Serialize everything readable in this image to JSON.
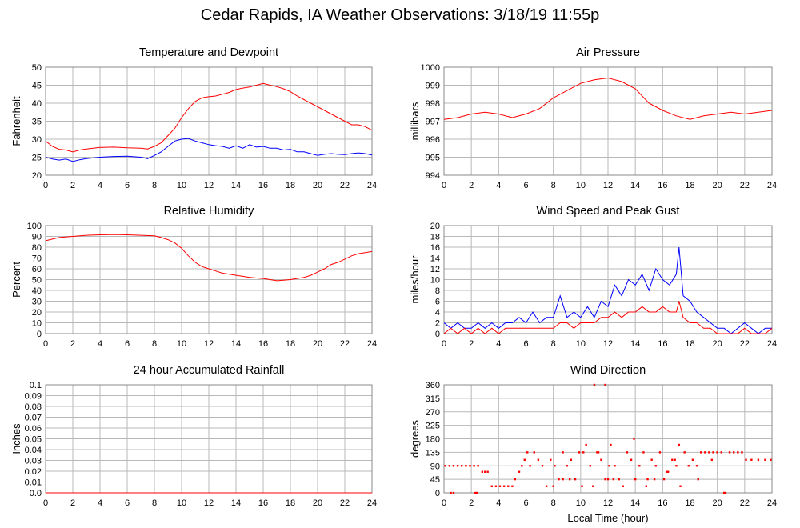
{
  "header": {
    "title": "Cedar Rapids, IA Weather Observations: 3/18/19 11:55p"
  },
  "colors": {
    "red": "#ff0000",
    "blue": "#0000ff",
    "grid": "#b8b8b8",
    "frame": "#888888"
  },
  "chart_data": [
    {
      "id": "temp",
      "type": "line",
      "title": "Temperature and Dewpoint",
      "xlabel": "",
      "ylabel": "Fahrenheit",
      "xlim": [
        0,
        24
      ],
      "ylim": [
        20,
        50
      ],
      "xticks": [
        0,
        2,
        4,
        6,
        8,
        10,
        12,
        14,
        16,
        18,
        20,
        22,
        24
      ],
      "yticks": [
        20,
        25,
        30,
        35,
        40,
        45,
        50
      ],
      "grid": true,
      "series": [
        {
          "color": "#ff0000",
          "x": [
            0,
            0.5,
            1,
            1.5,
            2,
            2.5,
            3,
            4,
            5,
            6,
            7,
            7.5,
            8,
            8.5,
            9,
            9.5,
            10,
            10.5,
            11,
            11.5,
            12,
            12.5,
            13,
            13.5,
            14,
            14.5,
            15,
            15.5,
            16,
            16.5,
            17,
            17.5,
            18,
            18.5,
            19,
            19.5,
            20,
            20.5,
            21,
            21.5,
            22,
            22.5,
            23,
            23.5,
            24
          ],
          "values": [
            29.5,
            28,
            27.2,
            27,
            26.5,
            27,
            27.3,
            27.7,
            27.8,
            27.6,
            27.5,
            27.3,
            28,
            29,
            31,
            33,
            36,
            38.5,
            40.5,
            41.5,
            41.8,
            42,
            42.5,
            43,
            43.8,
            44.2,
            44.5,
            45,
            45.5,
            45,
            44.6,
            44,
            43.2,
            42,
            41,
            40,
            39,
            38,
            37,
            36,
            35,
            34,
            34,
            33.5,
            32.5
          ]
        },
        {
          "color": "#0000ff",
          "x": [
            0,
            0.5,
            1,
            1.5,
            2,
            2.5,
            3,
            4,
            5,
            6,
            7,
            7.5,
            8,
            8.5,
            9,
            9.5,
            10,
            10.5,
            11,
            11.5,
            12,
            12.5,
            13,
            13.5,
            14,
            14.5,
            15,
            15.5,
            16,
            16.5,
            17,
            17.5,
            18,
            18.5,
            19,
            19.5,
            20,
            20.5,
            21,
            21.5,
            22,
            22.5,
            23,
            23.5,
            24
          ],
          "values": [
            25,
            24.5,
            24.2,
            24.5,
            23.8,
            24.3,
            24.6,
            25,
            25.2,
            25.3,
            25,
            24.6,
            25.5,
            26.5,
            28,
            29.5,
            30,
            30.2,
            29.5,
            29,
            28.5,
            28.2,
            28,
            27.5,
            28.2,
            27.5,
            28.5,
            27.8,
            28,
            27.5,
            27.5,
            27,
            27.2,
            26.5,
            26.5,
            26,
            25.5,
            25.8,
            26,
            25.8,
            25.7,
            26,
            26.2,
            26,
            25.6
          ]
        }
      ]
    },
    {
      "id": "pressure",
      "type": "line",
      "title": "Air Pressure",
      "xlabel": "",
      "ylabel": "millibars",
      "xlim": [
        0,
        24
      ],
      "ylim": [
        994,
        1000
      ],
      "xticks": [
        0,
        2,
        4,
        6,
        8,
        10,
        12,
        14,
        16,
        18,
        20,
        22,
        24
      ],
      "yticks": [
        994,
        995,
        996,
        997,
        998,
        999,
        1000
      ],
      "grid": true,
      "series": [
        {
          "color": "#ff0000",
          "x": [
            0,
            1,
            2,
            3,
            4,
            5,
            6,
            7,
            8,
            9,
            10,
            11,
            12,
            13,
            14,
            15,
            16,
            17,
            18,
            19,
            20,
            21,
            22,
            23,
            24
          ],
          "values": [
            997.1,
            997.2,
            997.4,
            997.5,
            997.4,
            997.2,
            997.4,
            997.7,
            998.3,
            998.7,
            999.1,
            999.3,
            999.4,
            999.2,
            998.8,
            998.0,
            997.6,
            997.3,
            997.1,
            997.3,
            997.4,
            997.5,
            997.4,
            997.5,
            997.6
          ]
        }
      ]
    },
    {
      "id": "humidity",
      "type": "line",
      "title": "Relative Humidity",
      "xlabel": "",
      "ylabel": "Percent",
      "xlim": [
        0,
        24
      ],
      "ylim": [
        0,
        100
      ],
      "xticks": [
        0,
        2,
        4,
        6,
        8,
        10,
        12,
        14,
        16,
        18,
        20,
        22,
        24
      ],
      "yticks": [
        0,
        10,
        20,
        30,
        40,
        50,
        60,
        70,
        80,
        90,
        100
      ],
      "grid": true,
      "series": [
        {
          "color": "#ff0000",
          "x": [
            0,
            1,
            2,
            3,
            4,
            5,
            6,
            7,
            8,
            8.5,
            9,
            9.5,
            10,
            10.5,
            11,
            11.5,
            12,
            12.5,
            13,
            13.5,
            14,
            14.5,
            15,
            15.5,
            16,
            16.5,
            17,
            17.5,
            18,
            18.5,
            19,
            19.5,
            20,
            20.5,
            21,
            21.5,
            22,
            22.5,
            23,
            23.5,
            24
          ],
          "values": [
            86,
            89,
            90,
            91,
            91.5,
            91.8,
            91.5,
            91,
            90.5,
            89,
            87,
            84,
            79,
            72,
            66,
            62,
            60,
            58,
            56,
            55,
            54,
            53,
            52,
            51.5,
            51,
            50,
            49,
            49.5,
            50,
            51,
            52,
            54,
            57,
            60,
            64,
            66,
            69,
            72,
            74,
            75,
            76
          ]
        }
      ]
    },
    {
      "id": "wind",
      "type": "line",
      "title": "Wind Speed and Peak Gust",
      "xlabel": "",
      "ylabel": "miles/hour",
      "xlim": [
        0,
        24
      ],
      "ylim": [
        0,
        20
      ],
      "xticks": [
        0,
        2,
        4,
        6,
        8,
        10,
        12,
        14,
        16,
        18,
        20,
        22,
        24
      ],
      "yticks": [
        0,
        2,
        4,
        6,
        8,
        10,
        12,
        14,
        16,
        18,
        20
      ],
      "grid": true,
      "series": [
        {
          "color": "#0000ff",
          "x": [
            0,
            0.5,
            1,
            1.5,
            2,
            2.5,
            3,
            3.5,
            4,
            4.5,
            5,
            5.5,
            6,
            6.5,
            7,
            7.5,
            8,
            8.5,
            9,
            9.5,
            10,
            10.5,
            11,
            11.5,
            12,
            12.5,
            13,
            13.5,
            14,
            14.5,
            15,
            15.5,
            16,
            16.5,
            17,
            17.2,
            17.5,
            18,
            18.5,
            19,
            19.5,
            20,
            20.5,
            21,
            21.5,
            22,
            22.5,
            23,
            23.5,
            24
          ],
          "values": [
            2,
            1,
            2,
            1,
            1,
            2,
            1,
            2,
            1,
            2,
            2,
            3,
            2,
            4,
            2,
            3,
            3,
            7,
            3,
            4,
            3,
            5,
            3,
            6,
            5,
            9,
            7,
            10,
            9,
            11,
            8,
            12,
            10,
            9,
            11,
            16,
            7,
            6,
            4,
            3,
            2,
            1,
            1,
            0,
            1,
            2,
            1,
            0,
            1,
            1
          ]
        },
        {
          "color": "#ff0000",
          "x": [
            0,
            0.5,
            1,
            1.5,
            2,
            2.5,
            3,
            3.5,
            4,
            4.5,
            5,
            5.5,
            6,
            6.5,
            7,
            7.5,
            8,
            8.5,
            9,
            9.5,
            10,
            10.5,
            11,
            11.5,
            12,
            12.5,
            13,
            13.5,
            14,
            14.5,
            15,
            15.5,
            16,
            16.5,
            17,
            17.2,
            17.5,
            18,
            18.5,
            19,
            19.5,
            20,
            20.5,
            21,
            21.5,
            22,
            22.5,
            23,
            23.5,
            24
          ],
          "values": [
            0,
            1,
            0,
            1,
            0,
            1,
            0,
            1,
            0,
            1,
            1,
            1,
            1,
            1,
            1,
            1,
            1,
            2,
            2,
            1,
            2,
            2,
            2,
            3,
            3,
            4,
            3,
            4,
            4,
            5,
            4,
            4,
            5,
            4,
            4,
            6,
            3,
            2,
            2,
            1,
            1,
            0,
            0,
            0,
            0,
            1,
            0,
            0,
            0,
            1
          ]
        }
      ]
    },
    {
      "id": "rain",
      "type": "line",
      "title": "24 hour Accumulated Rainfall",
      "xlabel": "",
      "ylabel": "Inches",
      "xlim": [
        0,
        24
      ],
      "ylim": [
        0,
        0.1
      ],
      "xticks": [
        0,
        2,
        4,
        6,
        8,
        10,
        12,
        14,
        16,
        18,
        20,
        22,
        24
      ],
      "yticks": [
        "0.0",
        "0.01",
        "0.02",
        "0.03",
        "0.04",
        "0.05",
        "0.06",
        "0.07",
        "0.08",
        "0.09",
        "0.1"
      ],
      "grid": true,
      "series": [
        {
          "color": "#ff0000",
          "x": [
            0,
            24
          ],
          "values": [
            0,
            0
          ]
        }
      ]
    },
    {
      "id": "direction",
      "type": "scatter",
      "title": "Wind Direction",
      "xlabel": "Local Time (hour)",
      "ylabel": "degrees",
      "xlim": [
        0,
        24
      ],
      "ylim": [
        0,
        360
      ],
      "xticks": [
        0,
        2,
        4,
        6,
        8,
        10,
        12,
        14,
        16,
        18,
        20,
        22,
        24
      ],
      "yticks": [
        0,
        45,
        90,
        135,
        180,
        225,
        270,
        315,
        360
      ],
      "grid": true,
      "series": [
        {
          "color": "#ff0000",
          "x": [
            0.1,
            0.4,
            0.7,
            1.0,
            1.3,
            1.6,
            1.9,
            2.2,
            2.5,
            0.5,
            0.7,
            2.3,
            2.4,
            2.8,
            3.0,
            3.2,
            3.5,
            3.8,
            4.1,
            4.4,
            4.7,
            5.0,
            5.2,
            5.5,
            5.7,
            5.9,
            6.1,
            6.3,
            6.6,
            6.9,
            7.2,
            7.5,
            7.8,
            8.1,
            8.4,
            8.7,
            9.0,
            9.3,
            9.6,
            9.9,
            10.2,
            10.4,
            10.7,
            10.9,
            11.2,
            11.5,
            11.8,
            12.0,
            12.2,
            12.5,
            12.8,
            13.1,
            13.4,
            13.7,
            14.0,
            14.3,
            14.6,
            14.9,
            15.2,
            15.5,
            15.8,
            16.1,
            16.4,
            16.7,
            17.0,
            17.3,
            17.6,
            17.9,
            18.2,
            18.5,
            18.8,
            19.1,
            19.4,
            19.7,
            20.0,
            20.3,
            20.6,
            20.9,
            21.2,
            21.5,
            21.8,
            22.1,
            22.5,
            23.0,
            23.5,
            23.9,
            11.0,
            11.8,
            12.1,
            12.4,
            8.0,
            8.7,
            9.2,
            10.1,
            11.3,
            13.9,
            14.8,
            16.3,
            17.2,
            18.6,
            19.6,
            20.5,
            15.4,
            16.9
          ],
          "values": [
            90,
            90,
            90,
            90,
            90,
            90,
            90,
            90,
            90,
            0,
            0,
            0,
            0,
            70,
            70,
            70,
            22,
            22,
            22,
            22,
            22,
            22,
            45,
            70,
            90,
            110,
            135,
            90,
            135,
            110,
            90,
            22,
            110,
            90,
            45,
            135,
            90,
            110,
            45,
            135,
            135,
            160,
            90,
            22,
            135,
            110,
            45,
            45,
            160,
            90,
            45,
            22,
            135,
            110,
            45,
            90,
            135,
            45,
            110,
            90,
            135,
            45,
            70,
            110,
            90,
            22,
            135,
            90,
            110,
            90,
            135,
            135,
            135,
            135,
            135,
            135,
            0,
            135,
            135,
            135,
            135,
            110,
            110,
            110,
            110,
            110,
            360,
            360,
            90,
            45,
            22,
            45,
            45,
            22,
            135,
            180,
            22,
            70,
            160,
            45,
            110,
            0,
            45,
            110
          ]
        }
      ]
    }
  ]
}
